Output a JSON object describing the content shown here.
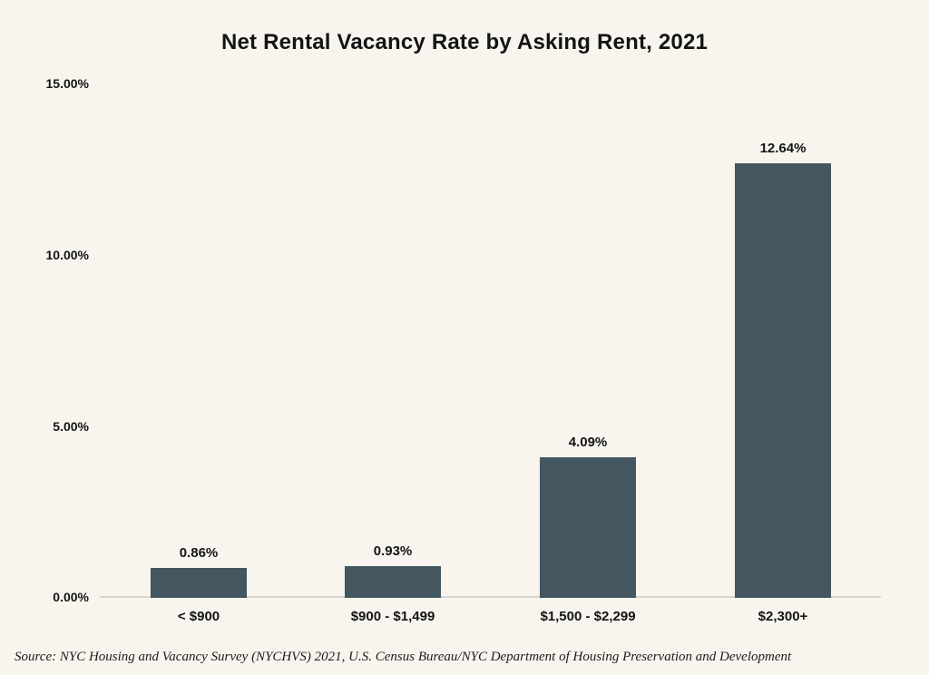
{
  "page": {
    "background": "#f7f5ee",
    "text_color": "#141414"
  },
  "chart_data": {
    "type": "bar",
    "title": "Net Rental Vacancy Rate by Asking Rent, 2021",
    "categories": [
      "< $900",
      "$900 - $1,499",
      "$1,500 - $2,299",
      "$2,300+"
    ],
    "values": [
      0.86,
      0.93,
      4.09,
      12.64
    ],
    "value_labels": [
      "0.86%",
      "0.93%",
      "4.09%",
      "12.64%"
    ],
    "xlabel": "",
    "ylabel": "",
    "ylim": [
      0,
      15
    ],
    "ytick_values": [
      15,
      10,
      5,
      0
    ],
    "ytick_labels": [
      "15.00%",
      "10.00%",
      "5.00%",
      "0.00%"
    ],
    "grid": false,
    "legend": false,
    "bar_color": "#44565f",
    "axis_line_color": "#d7d5cf"
  },
  "source": {
    "text": "Source: NYC Housing and Vacancy Survey (NYCHVS) 2021, U.S. Census Bureau/NYC Department of Housing Preservation and Development"
  }
}
